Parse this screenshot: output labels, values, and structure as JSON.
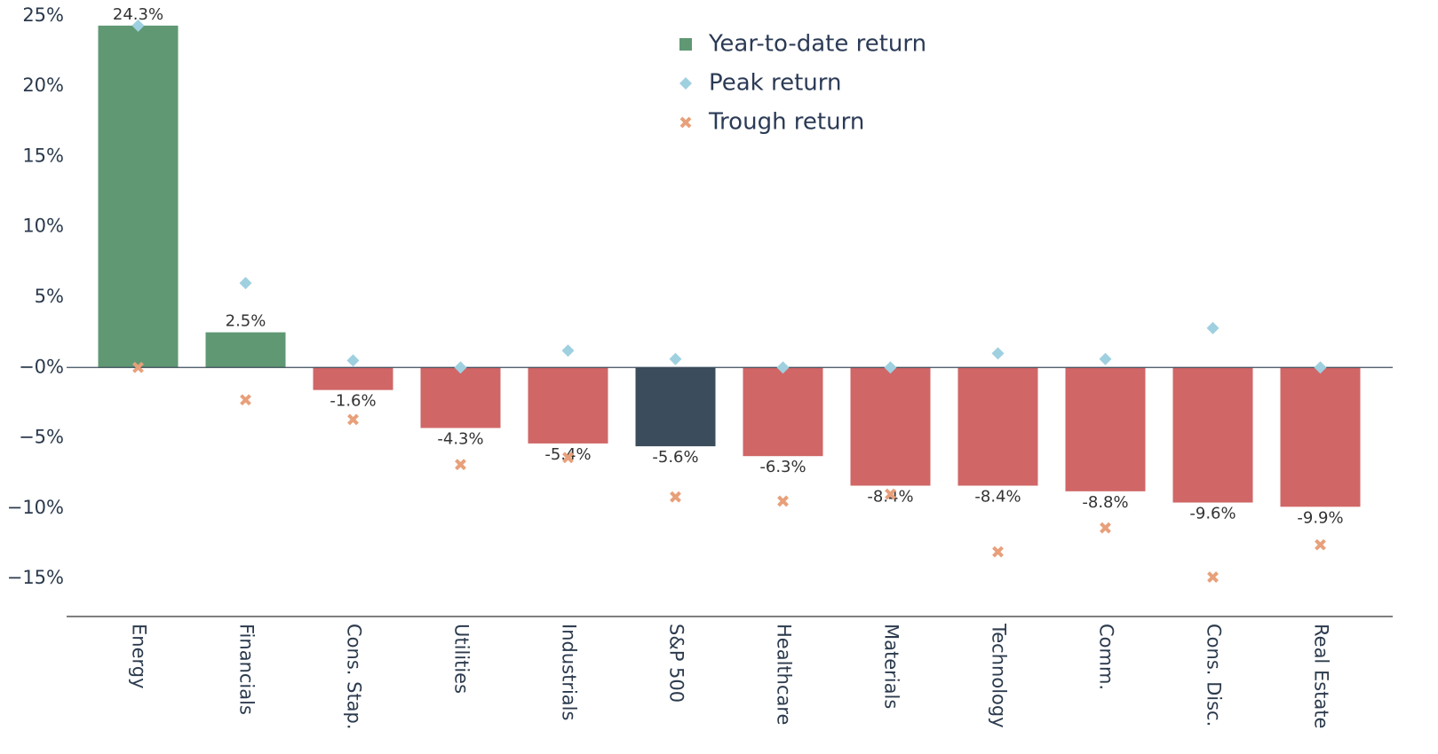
{
  "chart_data": {
    "type": "bar",
    "categories": [
      "Energy",
      "Financials",
      "Cons. Stap.",
      "Utilities",
      "Industrials",
      "S&P 500",
      "Healthcare",
      "Materials",
      "Technology",
      "Comm.",
      "Cons. Disc.",
      "Real Estate"
    ],
    "series": [
      {
        "name": "Year-to-date return",
        "color": "#5f9873",
        "colors": [
          "#5f9873",
          "#5f9873",
          "#d06666",
          "#d06666",
          "#d06666",
          "#3b4c5c",
          "#d06666",
          "#d06666",
          "#d06666",
          "#d06666",
          "#d06666",
          "#d06666"
        ],
        "values": [
          24.3,
          2.5,
          -1.6,
          -4.3,
          -5.4,
          -5.6,
          -6.3,
          -8.4,
          -8.4,
          -8.8,
          -9.6,
          -9.9
        ],
        "value_labels": [
          "24.3%",
          "2.5%",
          "-1.6%",
          "-4.3%",
          "-5.4%",
          "-5.6%",
          "-6.3%",
          "-8.4%",
          "-8.4%",
          "-8.8%",
          "-9.6%",
          "-9.9%"
        ]
      },
      {
        "name": "Peak return",
        "color": "#9fd0e0",
        "marker": "diamond",
        "values": [
          24.3,
          6.0,
          0.5,
          0,
          1.2,
          0.6,
          0,
          0,
          1.0,
          0.6,
          2.8,
          0
        ]
      },
      {
        "name": "Trough return",
        "color": "#e8a07a",
        "marker": "x",
        "values": [
          0,
          -2.3,
          -3.7,
          -6.9,
          -6.4,
          -9.2,
          -9.5,
          -9.0,
          -13.1,
          -11.4,
          -14.9,
          -12.6
        ]
      }
    ],
    "ylim": [
      -17.7,
      25.3
    ],
    "yticks": [
      {
        "value": 25,
        "label": "25%"
      },
      {
        "value": 20,
        "label": "20%"
      },
      {
        "value": 15,
        "label": "15%"
      },
      {
        "value": 10,
        "label": "10%"
      },
      {
        "value": 5,
        "label": "5%"
      },
      {
        "value": 0,
        "label": "−0%"
      },
      {
        "value": -5,
        "label": "−5%"
      },
      {
        "value": -10,
        "label": "−10%"
      },
      {
        "value": -15,
        "label": "−15%"
      }
    ],
    "legend": "top-center"
  }
}
